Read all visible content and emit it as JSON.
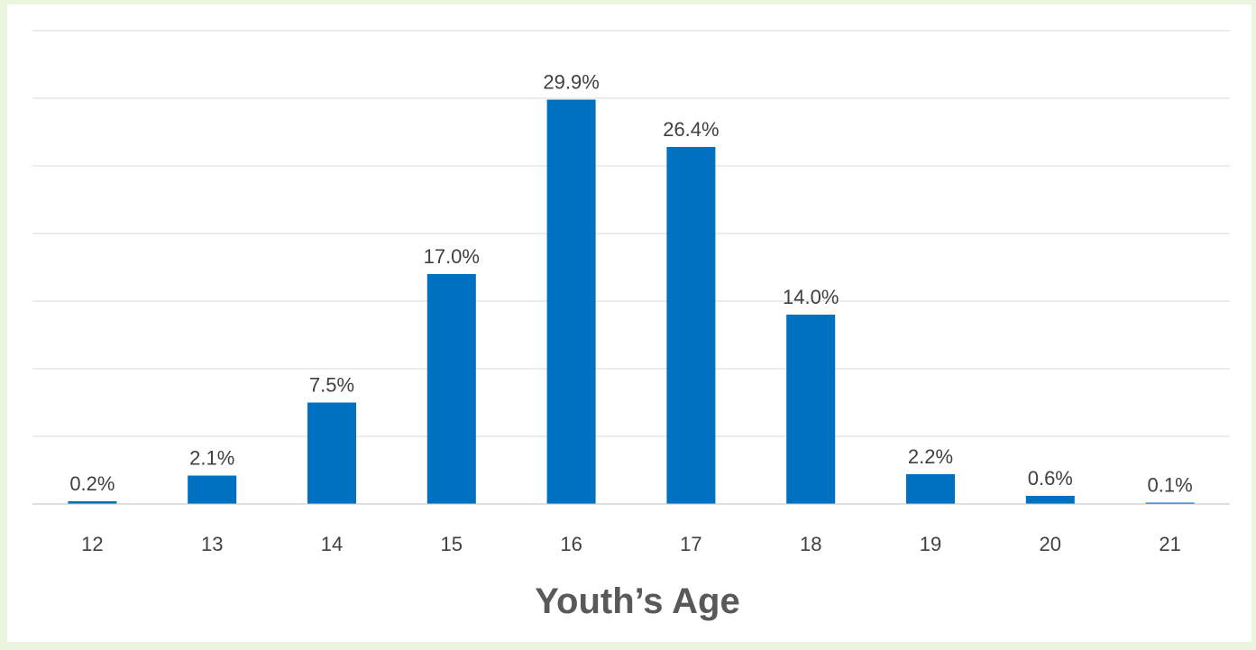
{
  "colors": {
    "background": "#ebf5e0",
    "bar": "#0070c0",
    "text": "#404040",
    "grid": "#d9d9d9"
  },
  "chart_data": {
    "type": "bar",
    "title": "",
    "xlabel": "Youth’s Age",
    "ylabel": "",
    "categories": [
      "12",
      "13",
      "14",
      "15",
      "16",
      "17",
      "18",
      "19",
      "20",
      "21"
    ],
    "values": [
      0.2,
      2.1,
      7.5,
      17.0,
      29.9,
      26.4,
      14.0,
      2.2,
      0.6,
      0.1
    ],
    "data_labels": [
      "0.2%",
      "2.1%",
      "7.5%",
      "17.0%",
      "29.9%",
      "26.4%",
      "14.0%",
      "2.2%",
      "0.6%",
      "0.1%"
    ],
    "ylim": [
      0,
      35
    ],
    "grid": true,
    "legend": "none"
  }
}
